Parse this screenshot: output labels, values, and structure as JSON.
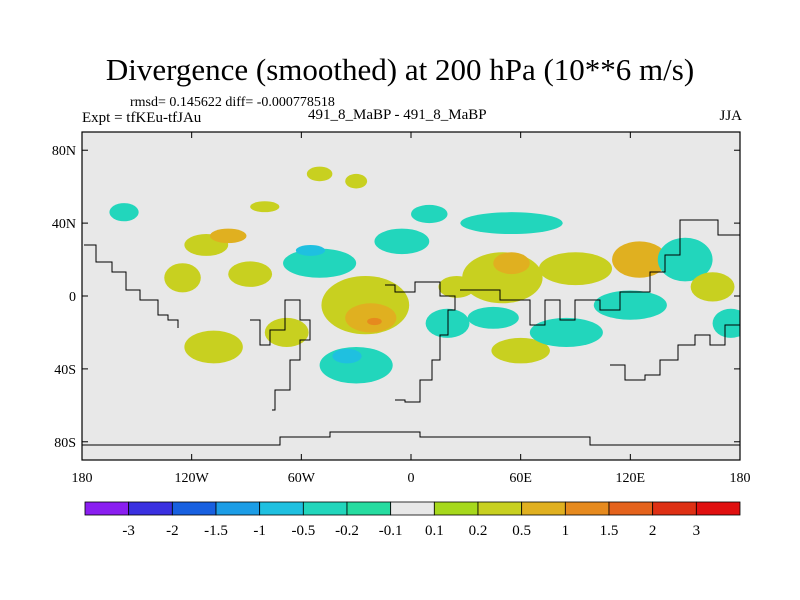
{
  "title": "Divergence (smoothed) at 200 hPa (10**6 m/s)",
  "stats_line": "rmsd= 0.145622 diff= -0.000778518",
  "expt_line": "Expt = tfKEu-tfJAu",
  "runs_line": "491_8_MaBP - 491_8_MaBP",
  "season": "JJA",
  "chart_data": {
    "type": "heatmap",
    "title": "Divergence (smoothed) at 200 hPa (10**6 m/s)",
    "x_ticks": [
      {
        "value": -180,
        "label": "180"
      },
      {
        "value": -120,
        "label": "120W"
      },
      {
        "value": -60,
        "label": "60W"
      },
      {
        "value": 0,
        "label": "0"
      },
      {
        "value": 60,
        "label": "60E"
      },
      {
        "value": 120,
        "label": "120E"
      },
      {
        "value": 180,
        "label": "180"
      }
    ],
    "y_ticks": [
      {
        "value": 80,
        "label": "80N"
      },
      {
        "value": 40,
        "label": "40N"
      },
      {
        "value": 0,
        "label": "0"
      },
      {
        "value": -40,
        "label": "40S"
      },
      {
        "value": -80,
        "label": "80S"
      }
    ],
    "xlim": [
      -180,
      180
    ],
    "ylim": [
      -90,
      90
    ],
    "background_color": "#e8e8e8",
    "colorbar": {
      "labels": [
        "-3",
        "-2",
        "-1.5",
        "-1",
        "-0.5",
        "-0.2",
        "-0.1",
        "0.1",
        "0.2",
        "0.5",
        "1",
        "1.5",
        "2",
        "3"
      ],
      "colors": [
        "#8a1ef0",
        "#3a30e0",
        "#1860e0",
        "#1c9de6",
        "#1fc0e0",
        "#22d6bc",
        "#26dca0",
        "#e8e8e8",
        "#a6d81c",
        "#c8d020",
        "#e0b020",
        "#e68a1e",
        "#e4621c",
        "#de3014",
        "#e01010"
      ]
    },
    "blobs": [
      {
        "lon": -157,
        "lat": 46,
        "rx": 8,
        "ry": 5,
        "level": "-0.2"
      },
      {
        "lon": -125,
        "lat": 10,
        "rx": 10,
        "ry": 8,
        "level": "0.2"
      },
      {
        "lon": -112,
        "lat": 28,
        "rx": 12,
        "ry": 6,
        "level": "0.2"
      },
      {
        "lon": -100,
        "lat": 33,
        "rx": 10,
        "ry": 4,
        "level": "0.5"
      },
      {
        "lon": -80,
        "lat": 49,
        "rx": 8,
        "ry": 3,
        "level": "0.2"
      },
      {
        "lon": -88,
        "lat": 12,
        "rx": 12,
        "ry": 7,
        "level": "0.2"
      },
      {
        "lon": -108,
        "lat": -28,
        "rx": 16,
        "ry": 9,
        "level": "0.2"
      },
      {
        "lon": -68,
        "lat": -20,
        "rx": 12,
        "ry": 8,
        "level": "0.2"
      },
      {
        "lon": -50,
        "lat": 67,
        "rx": 7,
        "ry": 4,
        "level": "0.2"
      },
      {
        "lon": -50,
        "lat": 18,
        "rx": 20,
        "ry": 8,
        "level": "-0.2"
      },
      {
        "lon": -55,
        "lat": 25,
        "rx": 8,
        "ry": 3,
        "level": "-0.5"
      },
      {
        "lon": -30,
        "lat": 63,
        "rx": 6,
        "ry": 4,
        "level": "0.2"
      },
      {
        "lon": -25,
        "lat": -5,
        "rx": 24,
        "ry": 16,
        "level": "0.2"
      },
      {
        "lon": -22,
        "lat": -12,
        "rx": 14,
        "ry": 8,
        "level": "0.5"
      },
      {
        "lon": -20,
        "lat": -14,
        "rx": 4,
        "ry": 2,
        "level": "1"
      },
      {
        "lon": -30,
        "lat": -38,
        "rx": 20,
        "ry": 10,
        "level": "-0.2"
      },
      {
        "lon": -35,
        "lat": -33,
        "rx": 8,
        "ry": 4,
        "level": "-0.5"
      },
      {
        "lon": -5,
        "lat": 30,
        "rx": 15,
        "ry": 7,
        "level": "-0.2"
      },
      {
        "lon": 10,
        "lat": 45,
        "rx": 10,
        "ry": 5,
        "level": "-0.2"
      },
      {
        "lon": 25,
        "lat": 5,
        "rx": 10,
        "ry": 6,
        "level": "0.2"
      },
      {
        "lon": 20,
        "lat": -15,
        "rx": 12,
        "ry": 8,
        "level": "-0.2"
      },
      {
        "lon": 50,
        "lat": 10,
        "rx": 22,
        "ry": 14,
        "level": "0.2"
      },
      {
        "lon": 55,
        "lat": 18,
        "rx": 10,
        "ry": 6,
        "level": "0.5"
      },
      {
        "lon": 55,
        "lat": 40,
        "rx": 28,
        "ry": 6,
        "level": "-0.2"
      },
      {
        "lon": 45,
        "lat": -12,
        "rx": 14,
        "ry": 6,
        "level": "-0.2"
      },
      {
        "lon": 60,
        "lat": -30,
        "rx": 16,
        "ry": 7,
        "level": "0.2"
      },
      {
        "lon": 90,
        "lat": 15,
        "rx": 20,
        "ry": 9,
        "level": "0.2"
      },
      {
        "lon": 85,
        "lat": -20,
        "rx": 20,
        "ry": 8,
        "level": "-0.2"
      },
      {
        "lon": 120,
        "lat": -5,
        "rx": 20,
        "ry": 8,
        "level": "-0.2"
      },
      {
        "lon": 125,
        "lat": 20,
        "rx": 15,
        "ry": 10,
        "level": "0.5"
      },
      {
        "lon": 150,
        "lat": 20,
        "rx": 15,
        "ry": 12,
        "level": "-0.2"
      },
      {
        "lon": 165,
        "lat": 5,
        "rx": 12,
        "ry": 8,
        "level": "0.2"
      },
      {
        "lon": 175,
        "lat": -15,
        "rx": 10,
        "ry": 8,
        "level": "-0.2"
      }
    ]
  }
}
